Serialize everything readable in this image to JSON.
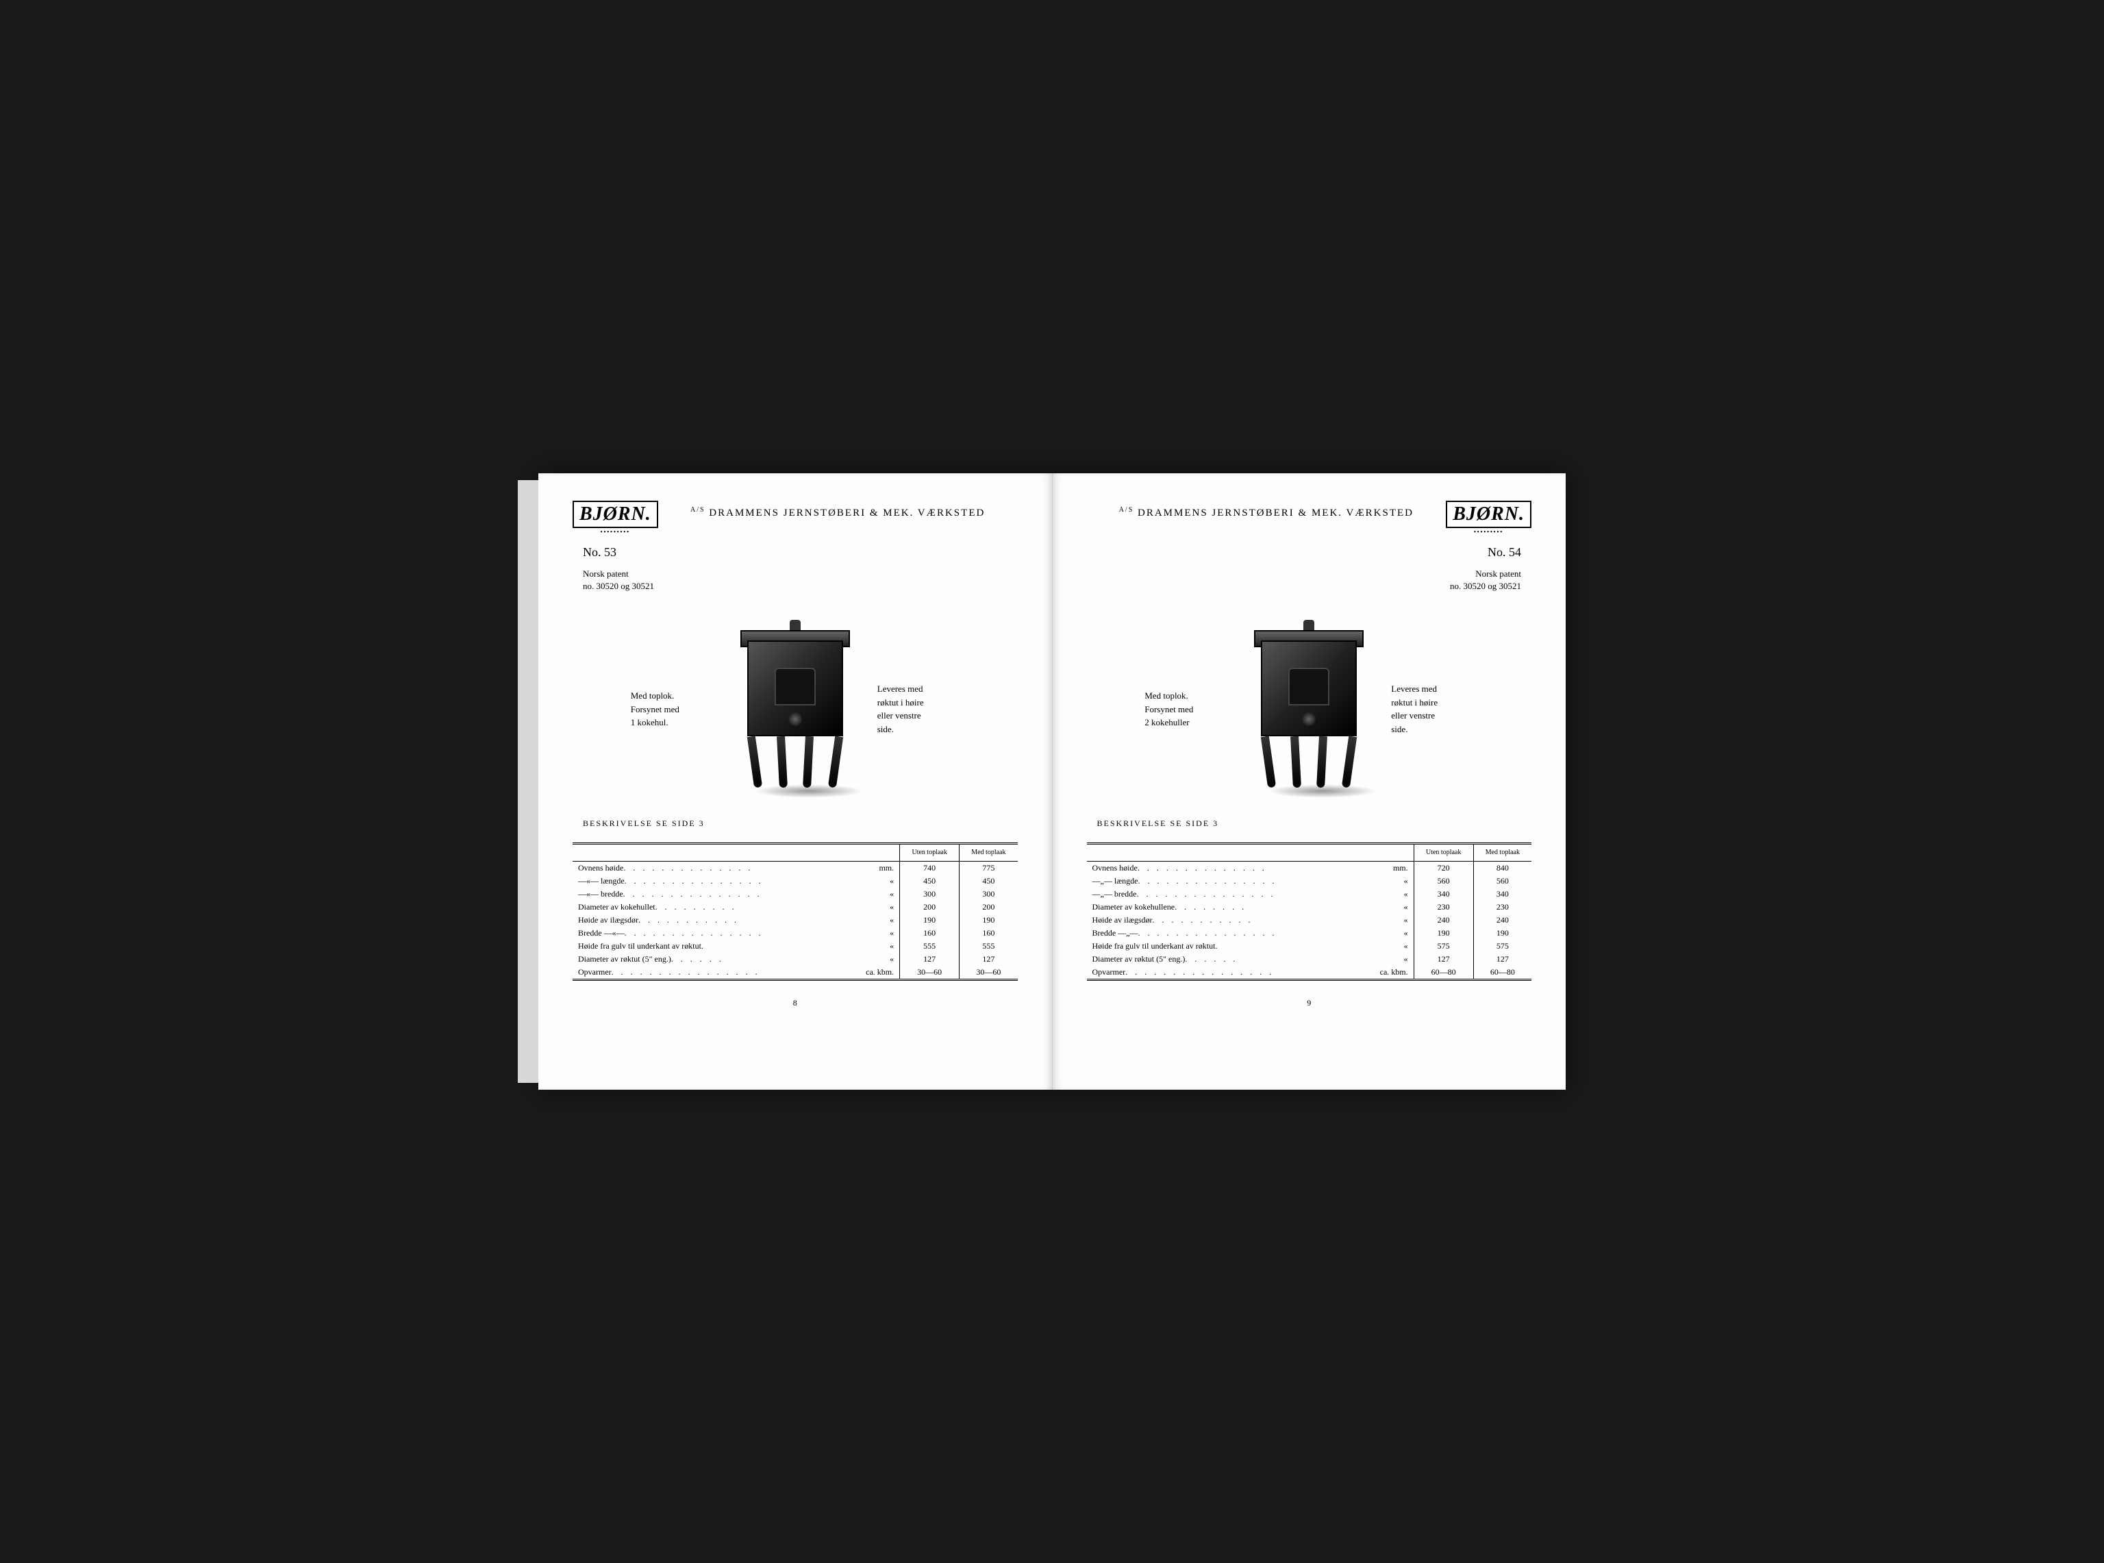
{
  "company": "DRAMMENS JERNSTØBERI & MEK. VÆRKSTED",
  "brand": "BJØRN.",
  "left": {
    "model_no": "No. 53",
    "patent_line1": "Norsk patent",
    "patent_line2": "no. 30520 og 30521",
    "side_left_1": "Med toplok.",
    "side_left_2": "Forsynet med",
    "side_left_3": "1 kokehul.",
    "side_right_1": "Leveres med",
    "side_right_2": "røktut i høire",
    "side_right_3": "eller venstre",
    "side_right_4": "side.",
    "desc_ref": "BESKRIVELSE SE SIDE 3",
    "table": {
      "col1_header": "Uten toplaak",
      "col2_header": "Med toplaak",
      "rows": [
        {
          "label": "Ovnens høide",
          "unit": "mm.",
          "v1": "740",
          "v2": "775"
        },
        {
          "label": "—«— længde",
          "unit": "«",
          "v1": "450",
          "v2": "450"
        },
        {
          "label": "—«— bredde",
          "unit": "«",
          "v1": "300",
          "v2": "300"
        },
        {
          "label": "Diameter av kokehullet",
          "unit": "«",
          "v1": "200",
          "v2": "200"
        },
        {
          "label": "Høide av ilægsdør",
          "unit": "«",
          "v1": "190",
          "v2": "190"
        },
        {
          "label": "Bredde —«—",
          "unit": "«",
          "v1": "160",
          "v2": "160"
        },
        {
          "label": "Høide fra gulv til underkant av røktut",
          "unit": "«",
          "v1": "555",
          "v2": "555"
        },
        {
          "label": "Diameter av røktut (5\" eng.)",
          "unit": "«",
          "v1": "127",
          "v2": "127"
        },
        {
          "label": "Opvarmer",
          "unit": "ca. kbm.",
          "v1": "30—60",
          "v2": "30—60"
        }
      ]
    },
    "page_num": "8"
  },
  "right": {
    "model_no": "No. 54",
    "patent_line1": "Norsk patent",
    "patent_line2": "no. 30520 og 30521",
    "side_left_1": "Med toplok.",
    "side_left_2": "Forsynet med",
    "side_left_3": "2 kokehuller",
    "side_right_1": "Leveres med",
    "side_right_2": "røktut i høire",
    "side_right_3": "eller venstre",
    "side_right_4": "side.",
    "desc_ref": "BESKRIVELSE SE SIDE 3",
    "table": {
      "col1_header": "Uten toplaak",
      "col2_header": "Med toplaak",
      "rows": [
        {
          "label": "Ovnens høide",
          "unit": "mm.",
          "v1": "720",
          "v2": "840"
        },
        {
          "label": "—„— længde",
          "unit": "«",
          "v1": "560",
          "v2": "560"
        },
        {
          "label": "—„— bredde",
          "unit": "«",
          "v1": "340",
          "v2": "340"
        },
        {
          "label": "Diameter av kokehullene",
          "unit": "«",
          "v1": "230",
          "v2": "230"
        },
        {
          "label": "Høide av ilægsdør",
          "unit": "«",
          "v1": "240",
          "v2": "240"
        },
        {
          "label": "Bredde —„—",
          "unit": "«",
          "v1": "190",
          "v2": "190"
        },
        {
          "label": "Høide fra gulv til underkant av røktut",
          "unit": "«",
          "v1": "575",
          "v2": "575"
        },
        {
          "label": "Diameter av røktut (5\" eng.)",
          "unit": "«",
          "v1": "127",
          "v2": "127"
        },
        {
          "label": "Opvarmer",
          "unit": "ca. kbm.",
          "v1": "60—80",
          "v2": "60—80"
        }
      ]
    },
    "page_num": "9"
  }
}
